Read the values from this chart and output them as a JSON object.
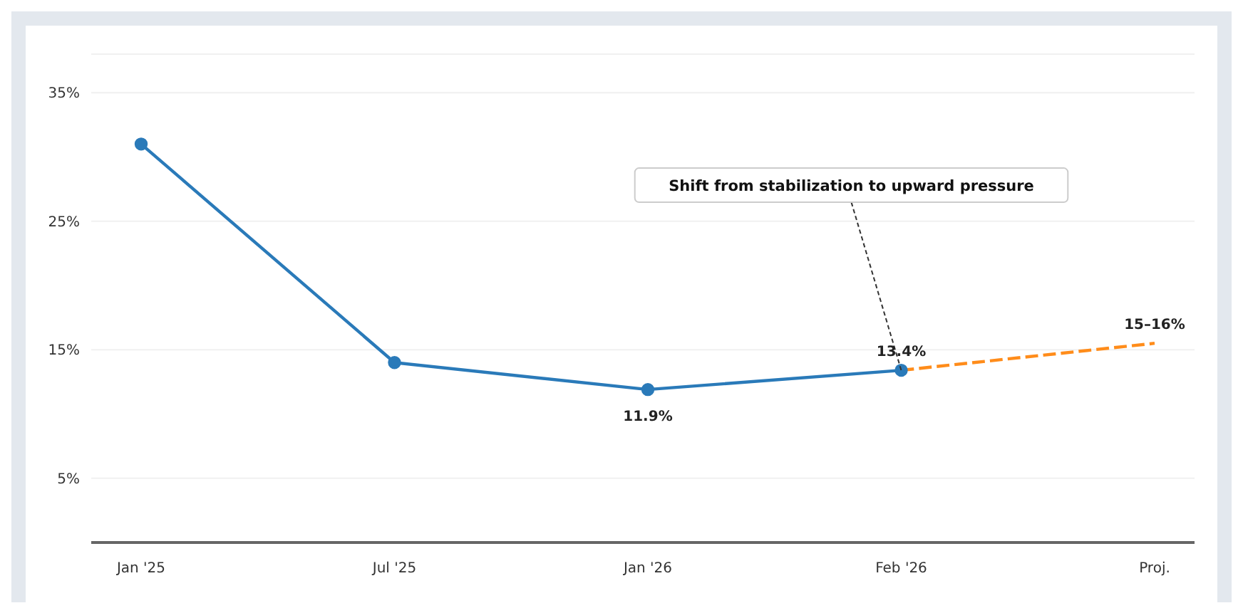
{
  "chart_data": {
    "type": "line",
    "categories": [
      "Jan '25",
      "Jul '25",
      "Jan '26",
      "Feb '26",
      "Proj."
    ],
    "series": [
      {
        "color": "#2a7ab9",
        "values": [
          31,
          14,
          11.9,
          13.4,
          null
        ],
        "value_labels": [
          null,
          null,
          "11.9%",
          "13.4%",
          null
        ],
        "marker": "circle",
        "line_style": "solid"
      },
      {
        "color": "#ff8c1a",
        "values": [
          null,
          null,
          null,
          13.4,
          15.5
        ],
        "value_labels": [
          null,
          null,
          null,
          null,
          "15–16%"
        ],
        "marker": "none",
        "line_style": "dashed"
      }
    ],
    "ylim": [
      0,
      38
    ],
    "yticks": [
      {
        "value": 5,
        "label": "5%"
      },
      {
        "value": 15,
        "label": "15%"
      },
      {
        "value": 25,
        "label": "25%"
      },
      {
        "value": 35,
        "label": "35%"
      }
    ],
    "grid": "y",
    "legend": false,
    "annotations": [
      {
        "text": "Shift from stabilization to upward pressure",
        "x": "Feb '26",
        "y": 13.4
      }
    ]
  }
}
